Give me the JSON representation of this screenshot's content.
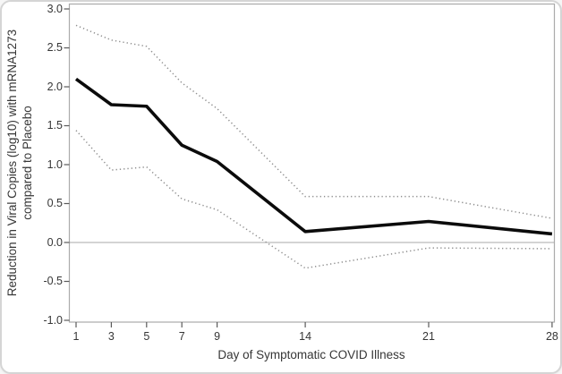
{
  "figure": {
    "background": "#ffffff",
    "card_border_color": "#d5d5d5",
    "frame_color": "#ababab",
    "tick_color": "#5a5a5a",
    "zero_line_color": "#a8a8a8",
    "text_color": "#363636"
  },
  "chart_data": {
    "type": "line",
    "title": "",
    "xlabel": "Day of Symptomatic COVID Illness",
    "ylabel_line1": "Reduction in Viral Copies (log10) with mRNA1273",
    "ylabel_line2": "compared to Placebo",
    "x": [
      1,
      3,
      5,
      7,
      9,
      14,
      21,
      28
    ],
    "xtick_labels": [
      "1",
      "3",
      "5",
      "7",
      "9",
      "14",
      "21",
      "28"
    ],
    "xlim": [
      1,
      28
    ],
    "ylim": [
      -1.0,
      3.0
    ],
    "yticks": [
      3.0,
      2.5,
      2.0,
      1.5,
      1.0,
      0.5,
      0.0,
      -0.5,
      -1.0
    ],
    "ytick_labels": [
      "3.0",
      "2.5",
      "2.0",
      "1.5",
      "1.0",
      "0.5",
      "0.0",
      "-0.5",
      "-1.0"
    ],
    "reference_line_y": 0.0,
    "grid": "off",
    "legend": "none",
    "series": [
      {
        "name": "mrna1273-point-estimate",
        "style": "solid",
        "color": "#0b0b0b",
        "values": [
          2.1,
          1.77,
          1.75,
          1.25,
          1.04,
          0.14,
          0.27,
          0.11
        ]
      },
      {
        "name": "upper-95pct-confidence-bound",
        "style": "dotted",
        "color": "#8f8f8f",
        "values": [
          2.79,
          2.6,
          2.52,
          2.05,
          1.72,
          0.59,
          0.59,
          0.31
        ]
      },
      {
        "name": "lower-95pct-confidence-bound",
        "style": "dotted",
        "color": "#8f8f8f",
        "values": [
          1.44,
          0.93,
          0.97,
          0.56,
          0.42,
          -0.33,
          -0.07,
          -0.08
        ]
      }
    ]
  }
}
